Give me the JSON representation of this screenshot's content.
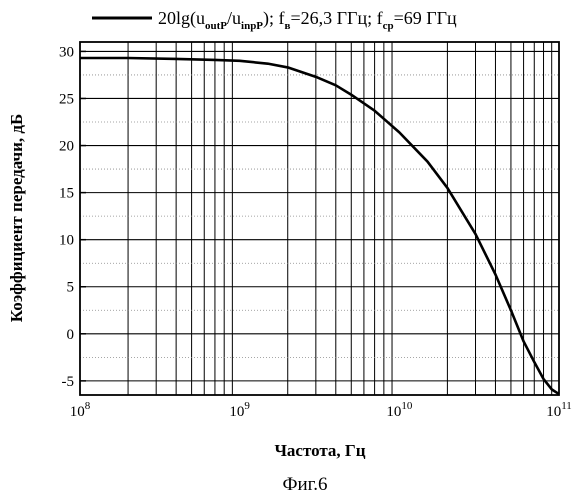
{
  "chart_data": {
    "type": "line",
    "xscale": "log",
    "xlim": [
      100000000,
      100000000000
    ],
    "ylim": [
      -6.5,
      31
    ],
    "grid": true,
    "xlabel": "Частота, Гц",
    "ylabel": "Коэффициент передачи, дБ",
    "xticks": [
      {
        "base": "10",
        "exp": "8"
      },
      {
        "base": "10",
        "exp": "9"
      },
      {
        "base": "10",
        "exp": "10"
      },
      {
        "base": "10",
        "exp": "11"
      }
    ],
    "yticks": [
      "-5",
      "0",
      "5",
      "10",
      "15",
      "20",
      "25",
      "30"
    ],
    "legend": {
      "position": "top",
      "parts": [
        {
          "text": "20lg(u"
        },
        {
          "sub": "outP"
        },
        {
          "text": "/u"
        },
        {
          "sub": "inpP"
        },
        {
          "text": "); f"
        },
        {
          "sub": "в"
        },
        {
          "text": "=26,3 ГГц; f"
        },
        {
          "sub": "ср"
        },
        {
          "text": "=69 ГГц"
        }
      ]
    },
    "series": [
      {
        "color": "#000000",
        "points": [
          [
            100000000,
            29.3
          ],
          [
            200000000,
            29.3
          ],
          [
            400000000,
            29.2
          ],
          [
            700000000,
            29.1
          ],
          [
            1000000000,
            29.0
          ],
          [
            1500000000,
            28.7
          ],
          [
            2000000000,
            28.3
          ],
          [
            3000000000,
            27.3
          ],
          [
            4000000000,
            26.4
          ],
          [
            5000000000,
            25.4
          ],
          [
            7000000000,
            23.7
          ],
          [
            10000000000,
            21.4
          ],
          [
            15000000000,
            18.3
          ],
          [
            20000000000,
            15.5
          ],
          [
            30000000000,
            10.6
          ],
          [
            40000000000,
            6.3
          ],
          [
            50000000000,
            2.5
          ],
          [
            60000000000,
            -0.8
          ],
          [
            70000000000,
            -3.0
          ],
          [
            80000000000,
            -4.8
          ],
          [
            90000000000,
            -5.9
          ],
          [
            100000000000,
            -6.4
          ]
        ]
      }
    ]
  },
  "caption": "Фиг.6"
}
